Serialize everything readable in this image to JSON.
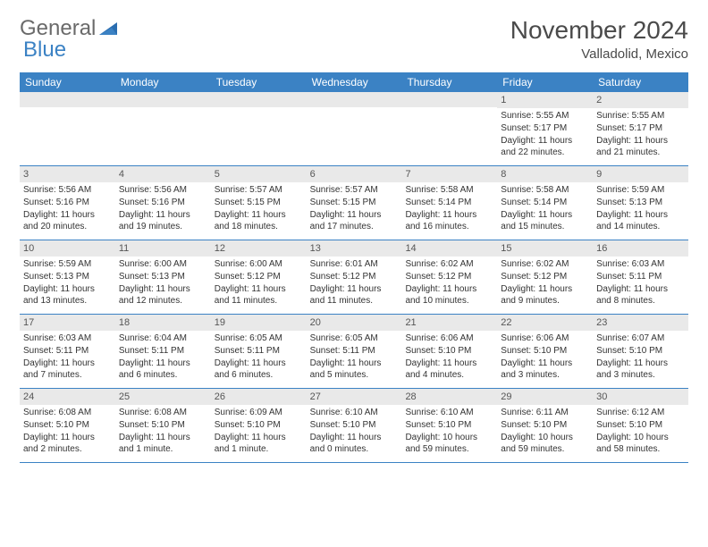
{
  "logo": {
    "text1": "General",
    "text2": "Blue"
  },
  "title": "November 2024",
  "location": "Valladolid, Mexico",
  "weekdays": [
    "Sunday",
    "Monday",
    "Tuesday",
    "Wednesday",
    "Thursday",
    "Friday",
    "Saturday"
  ],
  "colors": {
    "header_bar": "#3b82c4",
    "day_number_bg": "#e9e9e9",
    "text": "#333333",
    "logo_gray": "#6a6a6a",
    "logo_blue": "#3b82c4"
  },
  "weeks": [
    [
      {
        "n": "",
        "sunrise": "",
        "sunset": "",
        "daylight": ""
      },
      {
        "n": "",
        "sunrise": "",
        "sunset": "",
        "daylight": ""
      },
      {
        "n": "",
        "sunrise": "",
        "sunset": "",
        "daylight": ""
      },
      {
        "n": "",
        "sunrise": "",
        "sunset": "",
        "daylight": ""
      },
      {
        "n": "",
        "sunrise": "",
        "sunset": "",
        "daylight": ""
      },
      {
        "n": "1",
        "sunrise": "Sunrise: 5:55 AM",
        "sunset": "Sunset: 5:17 PM",
        "daylight": "Daylight: 11 hours and 22 minutes."
      },
      {
        "n": "2",
        "sunrise": "Sunrise: 5:55 AM",
        "sunset": "Sunset: 5:17 PM",
        "daylight": "Daylight: 11 hours and 21 minutes."
      }
    ],
    [
      {
        "n": "3",
        "sunrise": "Sunrise: 5:56 AM",
        "sunset": "Sunset: 5:16 PM",
        "daylight": "Daylight: 11 hours and 20 minutes."
      },
      {
        "n": "4",
        "sunrise": "Sunrise: 5:56 AM",
        "sunset": "Sunset: 5:16 PM",
        "daylight": "Daylight: 11 hours and 19 minutes."
      },
      {
        "n": "5",
        "sunrise": "Sunrise: 5:57 AM",
        "sunset": "Sunset: 5:15 PM",
        "daylight": "Daylight: 11 hours and 18 minutes."
      },
      {
        "n": "6",
        "sunrise": "Sunrise: 5:57 AM",
        "sunset": "Sunset: 5:15 PM",
        "daylight": "Daylight: 11 hours and 17 minutes."
      },
      {
        "n": "7",
        "sunrise": "Sunrise: 5:58 AM",
        "sunset": "Sunset: 5:14 PM",
        "daylight": "Daylight: 11 hours and 16 minutes."
      },
      {
        "n": "8",
        "sunrise": "Sunrise: 5:58 AM",
        "sunset": "Sunset: 5:14 PM",
        "daylight": "Daylight: 11 hours and 15 minutes."
      },
      {
        "n": "9",
        "sunrise": "Sunrise: 5:59 AM",
        "sunset": "Sunset: 5:13 PM",
        "daylight": "Daylight: 11 hours and 14 minutes."
      }
    ],
    [
      {
        "n": "10",
        "sunrise": "Sunrise: 5:59 AM",
        "sunset": "Sunset: 5:13 PM",
        "daylight": "Daylight: 11 hours and 13 minutes."
      },
      {
        "n": "11",
        "sunrise": "Sunrise: 6:00 AM",
        "sunset": "Sunset: 5:13 PM",
        "daylight": "Daylight: 11 hours and 12 minutes."
      },
      {
        "n": "12",
        "sunrise": "Sunrise: 6:00 AM",
        "sunset": "Sunset: 5:12 PM",
        "daylight": "Daylight: 11 hours and 11 minutes."
      },
      {
        "n": "13",
        "sunrise": "Sunrise: 6:01 AM",
        "sunset": "Sunset: 5:12 PM",
        "daylight": "Daylight: 11 hours and 11 minutes."
      },
      {
        "n": "14",
        "sunrise": "Sunrise: 6:02 AM",
        "sunset": "Sunset: 5:12 PM",
        "daylight": "Daylight: 11 hours and 10 minutes."
      },
      {
        "n": "15",
        "sunrise": "Sunrise: 6:02 AM",
        "sunset": "Sunset: 5:12 PM",
        "daylight": "Daylight: 11 hours and 9 minutes."
      },
      {
        "n": "16",
        "sunrise": "Sunrise: 6:03 AM",
        "sunset": "Sunset: 5:11 PM",
        "daylight": "Daylight: 11 hours and 8 minutes."
      }
    ],
    [
      {
        "n": "17",
        "sunrise": "Sunrise: 6:03 AM",
        "sunset": "Sunset: 5:11 PM",
        "daylight": "Daylight: 11 hours and 7 minutes."
      },
      {
        "n": "18",
        "sunrise": "Sunrise: 6:04 AM",
        "sunset": "Sunset: 5:11 PM",
        "daylight": "Daylight: 11 hours and 6 minutes."
      },
      {
        "n": "19",
        "sunrise": "Sunrise: 6:05 AM",
        "sunset": "Sunset: 5:11 PM",
        "daylight": "Daylight: 11 hours and 6 minutes."
      },
      {
        "n": "20",
        "sunrise": "Sunrise: 6:05 AM",
        "sunset": "Sunset: 5:11 PM",
        "daylight": "Daylight: 11 hours and 5 minutes."
      },
      {
        "n": "21",
        "sunrise": "Sunrise: 6:06 AM",
        "sunset": "Sunset: 5:10 PM",
        "daylight": "Daylight: 11 hours and 4 minutes."
      },
      {
        "n": "22",
        "sunrise": "Sunrise: 6:06 AM",
        "sunset": "Sunset: 5:10 PM",
        "daylight": "Daylight: 11 hours and 3 minutes."
      },
      {
        "n": "23",
        "sunrise": "Sunrise: 6:07 AM",
        "sunset": "Sunset: 5:10 PM",
        "daylight": "Daylight: 11 hours and 3 minutes."
      }
    ],
    [
      {
        "n": "24",
        "sunrise": "Sunrise: 6:08 AM",
        "sunset": "Sunset: 5:10 PM",
        "daylight": "Daylight: 11 hours and 2 minutes."
      },
      {
        "n": "25",
        "sunrise": "Sunrise: 6:08 AM",
        "sunset": "Sunset: 5:10 PM",
        "daylight": "Daylight: 11 hours and 1 minute."
      },
      {
        "n": "26",
        "sunrise": "Sunrise: 6:09 AM",
        "sunset": "Sunset: 5:10 PM",
        "daylight": "Daylight: 11 hours and 1 minute."
      },
      {
        "n": "27",
        "sunrise": "Sunrise: 6:10 AM",
        "sunset": "Sunset: 5:10 PM",
        "daylight": "Daylight: 11 hours and 0 minutes."
      },
      {
        "n": "28",
        "sunrise": "Sunrise: 6:10 AM",
        "sunset": "Sunset: 5:10 PM",
        "daylight": "Daylight: 10 hours and 59 minutes."
      },
      {
        "n": "29",
        "sunrise": "Sunrise: 6:11 AM",
        "sunset": "Sunset: 5:10 PM",
        "daylight": "Daylight: 10 hours and 59 minutes."
      },
      {
        "n": "30",
        "sunrise": "Sunrise: 6:12 AM",
        "sunset": "Sunset: 5:10 PM",
        "daylight": "Daylight: 10 hours and 58 minutes."
      }
    ]
  ]
}
